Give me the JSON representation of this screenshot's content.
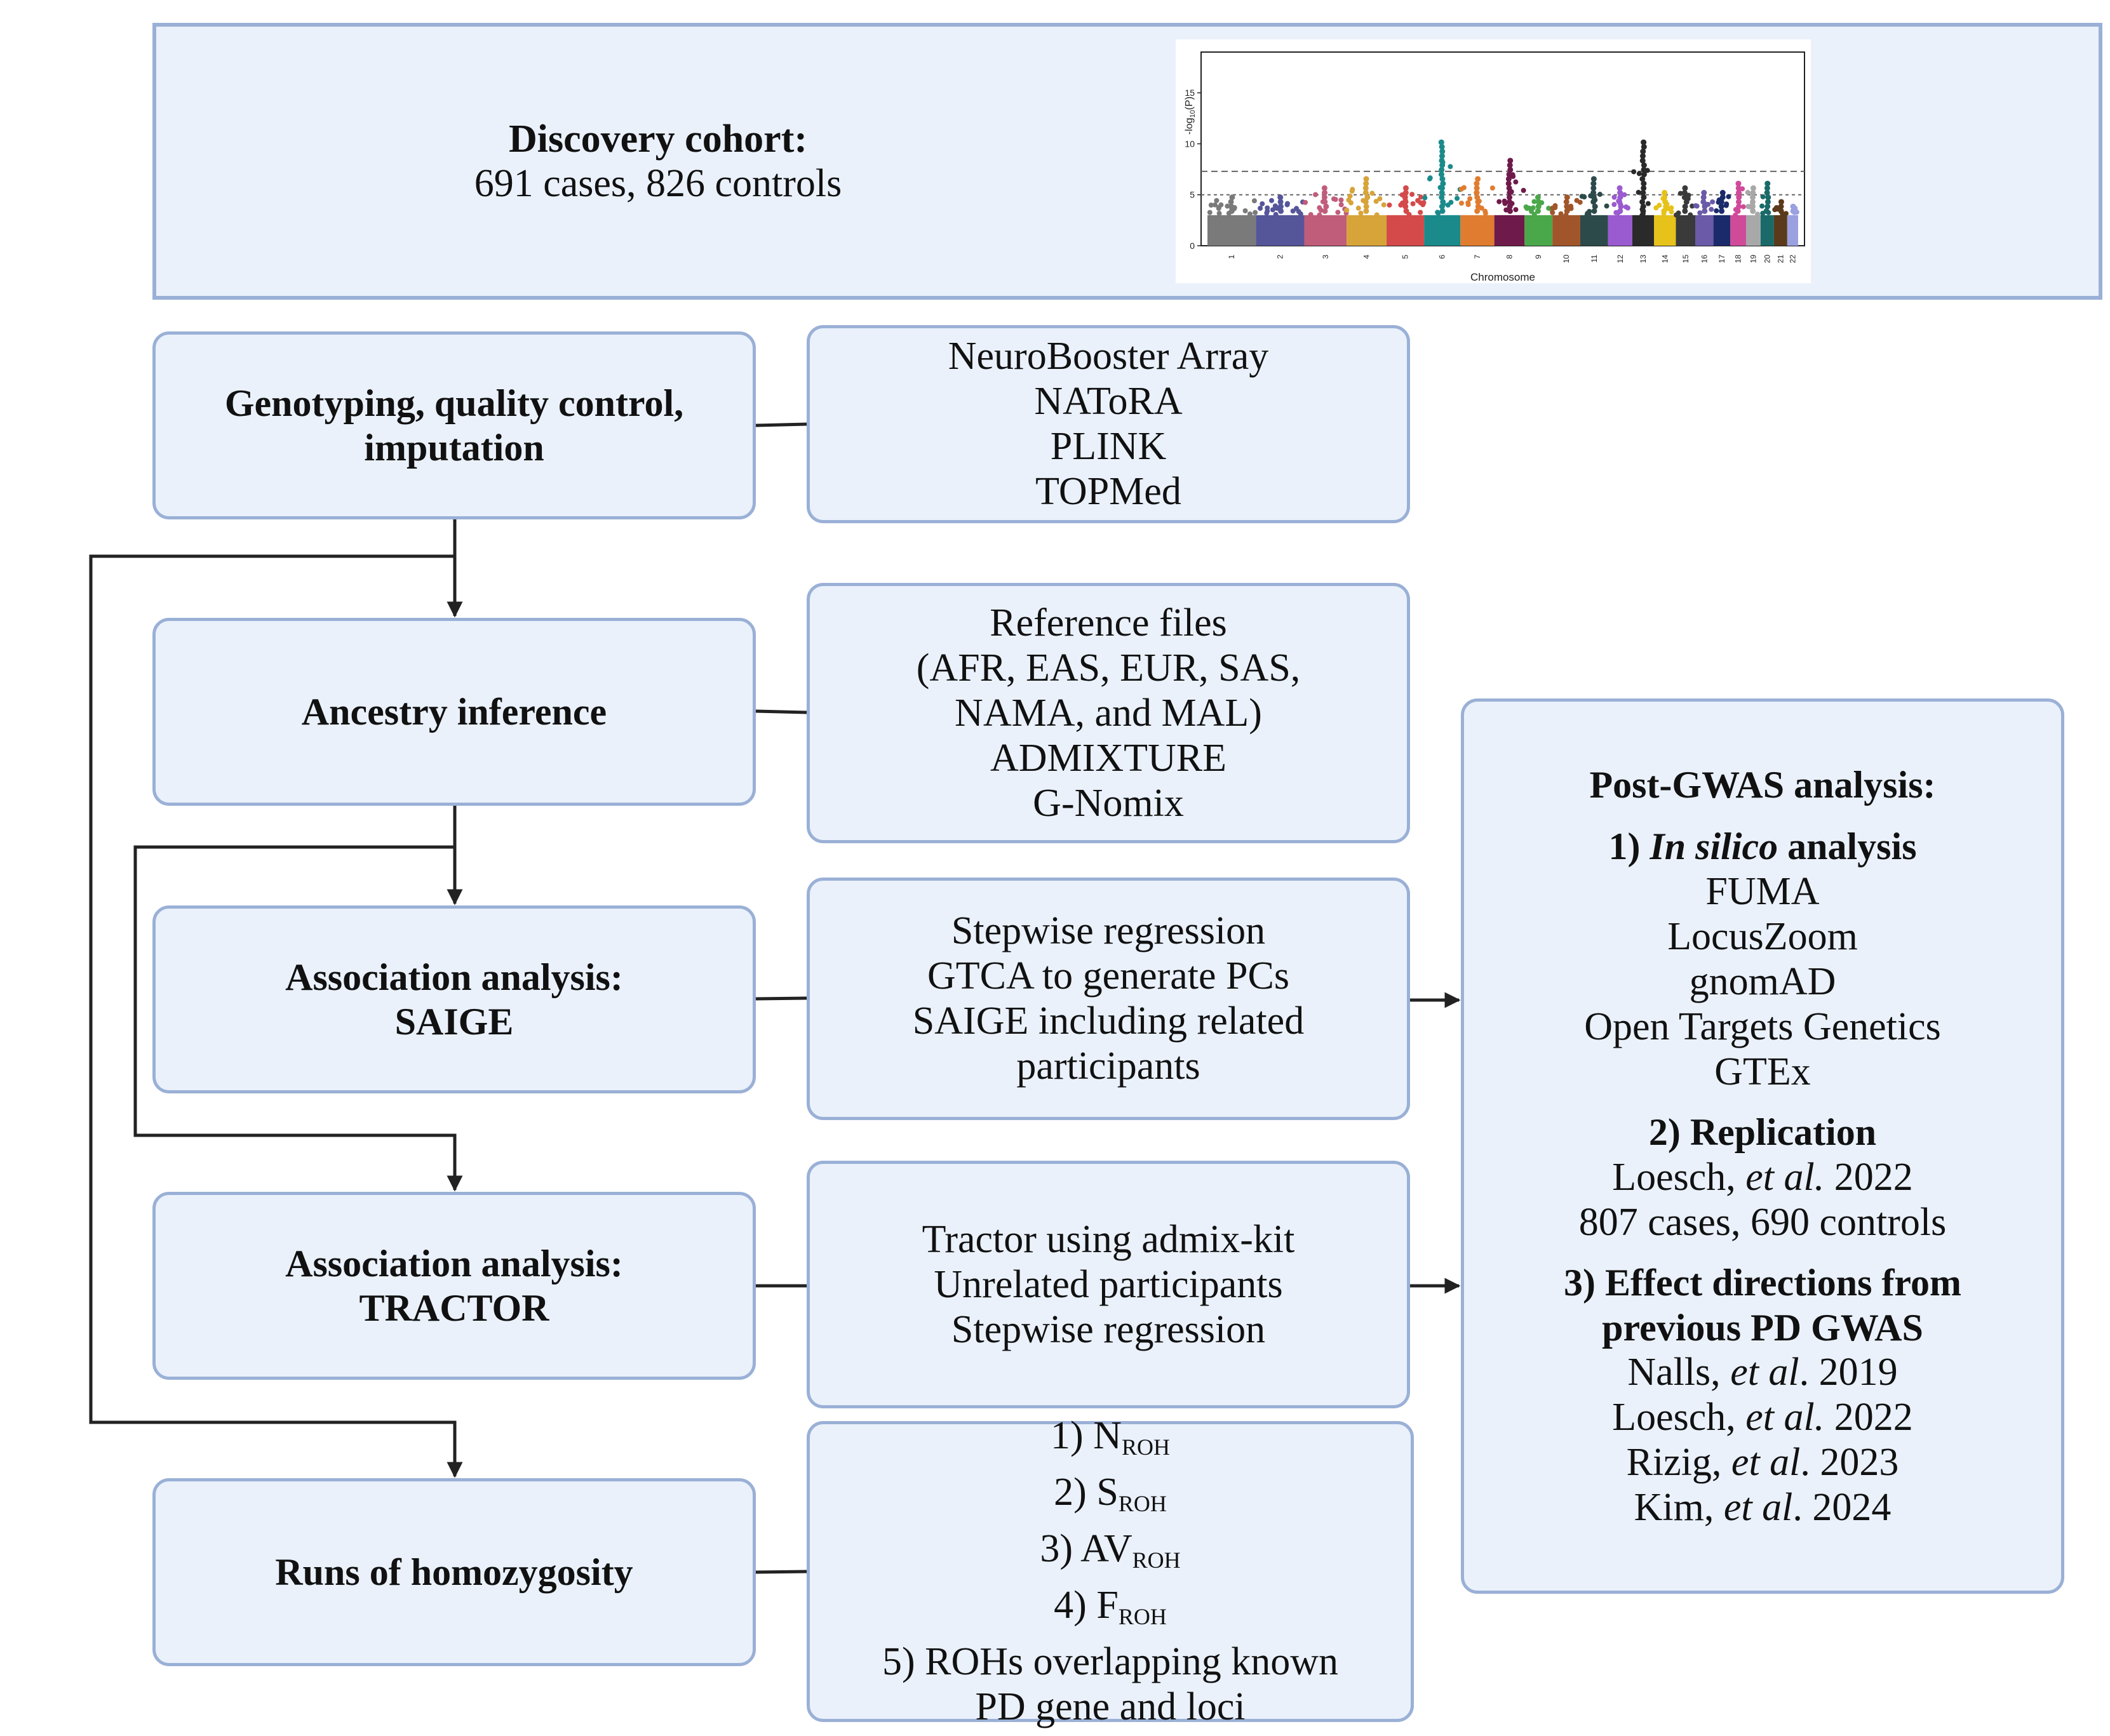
{
  "cohort": {
    "title": "Discovery cohort:",
    "subtitle": "691 cases, 826 controls"
  },
  "steps": [
    {
      "lines": [
        "Genotyping, quality control,",
        "imputation"
      ]
    },
    {
      "lines": [
        "Ancestry inference"
      ]
    },
    {
      "lines": [
        "Association analysis:",
        "SAIGE"
      ]
    },
    {
      "lines": [
        "Association analysis:",
        "TRACTOR"
      ]
    },
    {
      "lines": [
        "Runs of homozygosity"
      ]
    }
  ],
  "tools": [
    {
      "lines": [
        "NeuroBooster Array",
        "NAToRA",
        "PLINK",
        "TOPMed"
      ]
    },
    {
      "lines": [
        "Reference files",
        "(AFR, EAS, EUR, SAS,",
        "NAMA, and MAL)",
        "ADMIXTURE",
        "G-Nomix"
      ]
    },
    {
      "lines": [
        "Stepwise regression",
        "GTCA to generate PCs",
        "SAIGE including related",
        "participants"
      ]
    },
    {
      "lines": [
        "Tractor using admix-kit",
        "Unrelated participants",
        "Stepwise regression"
      ]
    }
  ],
  "roh": {
    "items": [
      {
        "prefix": "1) N",
        "sub": "ROH"
      },
      {
        "prefix": "2) S",
        "sub": "ROH"
      },
      {
        "prefix": "3) AV",
        "sub": "ROH"
      },
      {
        "prefix": "4) F",
        "sub": "ROH"
      }
    ],
    "extra_lines": [
      "5) ROHs overlapping known",
      "PD gene and loci"
    ]
  },
  "post": {
    "title": "Post-GWAS analysis:",
    "s1": {
      "pre": "1) ",
      "em": "In silico",
      "post": " analysis",
      "items": [
        "FUMA",
        "LocusZoom",
        "gnomAD",
        "Open Targets Genetics",
        "GTEx"
      ]
    },
    "s2": {
      "heading": "2) Replication",
      "ref": {
        "author": "Loesch, ",
        "etal": "et al.",
        "year": " 2022"
      },
      "detail": "807 cases, 690 controls"
    },
    "s3": {
      "heading_lines": [
        "3) Effect directions from",
        "previous PD GWAS"
      ],
      "refs": [
        {
          "author": "Nalls, ",
          "etal": "et al",
          "year": ". 2019"
        },
        {
          "author": "Loesch, ",
          "etal": "et al.",
          "year": " 2022"
        },
        {
          "author": "Rizig, ",
          "etal": "et al",
          "year": ". 2023"
        },
        {
          "author": "Kim, ",
          "etal": "et al",
          "year": ". 2024"
        }
      ]
    }
  },
  "chart_data": {
    "type": "scatter",
    "subtype": "manhattan",
    "xlabel": "Chromosome",
    "ylabel": "-log10(P)",
    "ylim": [
      0,
      19
    ],
    "yticks": [
      0,
      5,
      10,
      15
    ],
    "categories": [
      "1",
      "2",
      "3",
      "4",
      "5",
      "6",
      "7",
      "8",
      "9",
      "10",
      "11",
      "12",
      "13",
      "14",
      "15",
      "16",
      "17",
      "18",
      "19",
      "20",
      "21",
      "22"
    ],
    "chromosome_colors": [
      "#7a7a7a",
      "#55559a",
      "#c05d7a",
      "#d7a43a",
      "#d44a4a",
      "#1b8a8a",
      "#e07c30",
      "#6e1a4a",
      "#4aa84a",
      "#a0562a",
      "#2d4a4a",
      "#9a5ad0",
      "#2a2a2a",
      "#e6c21a",
      "#3a3a3a",
      "#6a5aa8",
      "#1a2a6a",
      "#d04a9a",
      "#a8a8a8",
      "#1a6a6a",
      "#5a3a1a",
      "#9aa0e0"
    ],
    "top_values": [
      5,
      5,
      6,
      7,
      6,
      10.2,
      7,
      8.5,
      5,
      5,
      7,
      6,
      10.5,
      5.5,
      6,
      5.5,
      5.5,
      6.5,
      6,
      6.5,
      4.5,
      4
    ],
    "significance_line": 7.3,
    "suggestive_line": 5,
    "grid": false
  }
}
